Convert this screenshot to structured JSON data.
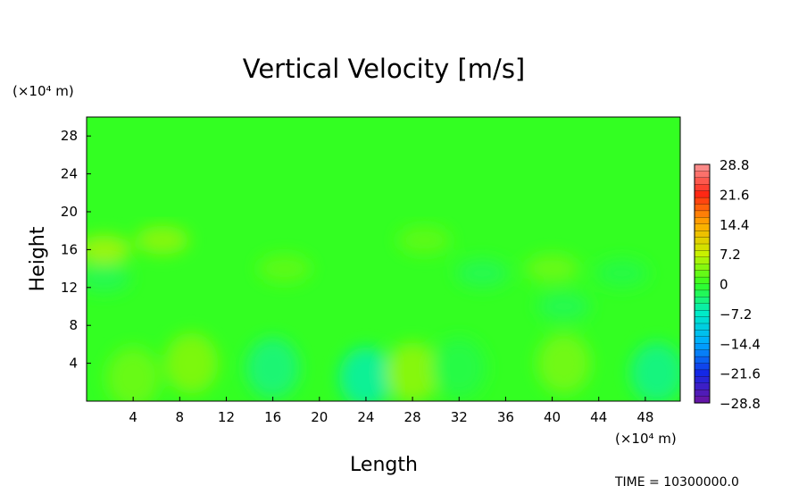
{
  "chart_data": {
    "type": "heatmap",
    "title": "Vertical Velocity [m/s]",
    "xlabel": "Length",
    "ylabel": "Height",
    "x_unit": "(×10⁴ m)",
    "y_unit": "(×10⁴ m)",
    "xlim": [
      0,
      51
    ],
    "ylim": [
      0,
      30
    ],
    "x_ticks": [
      4,
      8,
      12,
      16,
      20,
      24,
      28,
      32,
      36,
      40,
      44,
      48
    ],
    "y_ticks": [
      4,
      8,
      12,
      16,
      20,
      24,
      28
    ],
    "colorbar": {
      "min": -28.8,
      "max": 28.8,
      "ticks": [
        "28.8",
        "21.6",
        "14.4",
        "7.2",
        "0",
        "−7.2",
        "−14.4",
        "−21.6",
        "−28.8"
      ],
      "tick_values": [
        28.8,
        21.6,
        14.4,
        7.2,
        0,
        -7.2,
        -14.4,
        -21.6,
        -28.8
      ],
      "levels": 36
    },
    "background_value": 0,
    "features": [
      {
        "x": 4,
        "y": 2.5,
        "value": 2.5
      },
      {
        "x": 9,
        "y": 4,
        "value": 3.5
      },
      {
        "x": 16,
        "y": 3.5,
        "value": -3.5
      },
      {
        "x": 24,
        "y": 2.5,
        "value": -5
      },
      {
        "x": 28,
        "y": 3,
        "value": 4
      },
      {
        "x": 32,
        "y": 3.5,
        "value": -1.5
      },
      {
        "x": 41,
        "y": 4,
        "value": 3
      },
      {
        "x": 49,
        "y": 3,
        "value": -4
      },
      {
        "x": 1.5,
        "y": 16,
        "value": 5
      },
      {
        "x": 6.5,
        "y": 17,
        "value": 4
      },
      {
        "x": 17,
        "y": 14,
        "value": 2
      },
      {
        "x": 29,
        "y": 17,
        "value": 2
      },
      {
        "x": 34,
        "y": 13.5,
        "value": -2
      },
      {
        "x": 40,
        "y": 14,
        "value": 2.5
      },
      {
        "x": 46,
        "y": 13.5,
        "value": -1.5
      },
      {
        "x": 1.5,
        "y": 13,
        "value": -2
      },
      {
        "x": 41,
        "y": 10,
        "value": -2
      }
    ],
    "time_label": "TIME = 10300000.0"
  }
}
